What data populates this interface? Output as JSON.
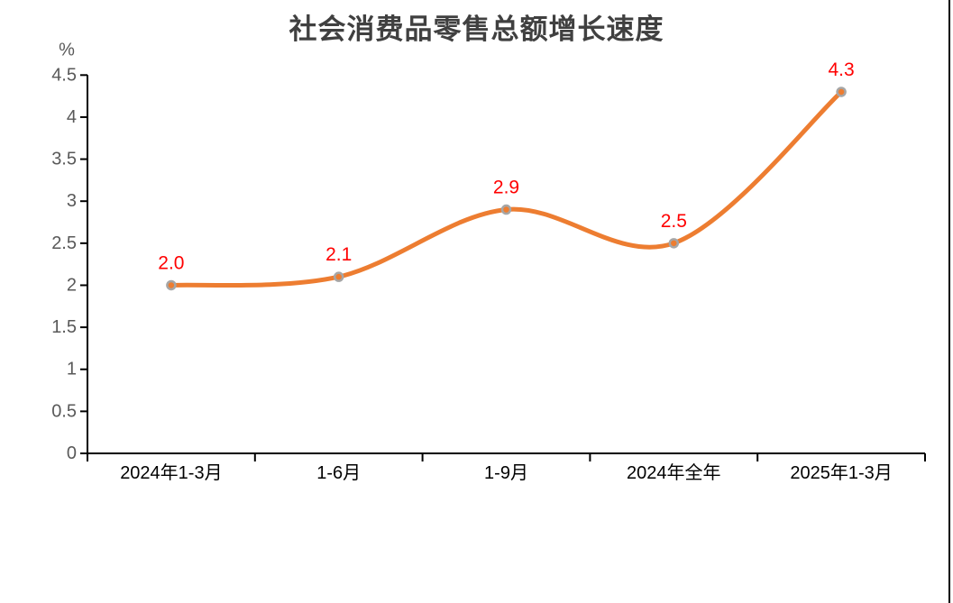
{
  "page": {
    "background": "#ffffff",
    "right_border_color": "#000000"
  },
  "chart_data": {
    "type": "line",
    "title": "社会消费品零售总额增长速度",
    "unit_label": "%",
    "categories": [
      "2024年1-3月",
      "1-6月",
      "1-9月",
      "2024年全年",
      "2025年1-3月"
    ],
    "series": [
      {
        "name": "社会消费品零售总额增长速度",
        "values": [
          2.0,
          2.1,
          2.9,
          2.5,
          4.3
        ],
        "data_labels": [
          "2.0",
          "2.1",
          "2.9",
          "2.5",
          "4.3"
        ]
      }
    ],
    "ylim": [
      0,
      4.5
    ],
    "ytick_step": 0.5,
    "ytick_labels": [
      "0",
      "0.5",
      "1",
      "1.5",
      "2",
      "2.5",
      "3",
      "3.5",
      "4",
      "4.5"
    ],
    "smooth": true,
    "grid": false,
    "legend": "none",
    "colors": {
      "line": "#ED7D31",
      "marker_fill": "#ED7D31",
      "marker_stroke": "#A6A6A6",
      "data_label": "#FF0000",
      "axis": "#000000",
      "ytick_text": "#595959",
      "xtick_text": "#000000",
      "title": "#404040"
    }
  }
}
